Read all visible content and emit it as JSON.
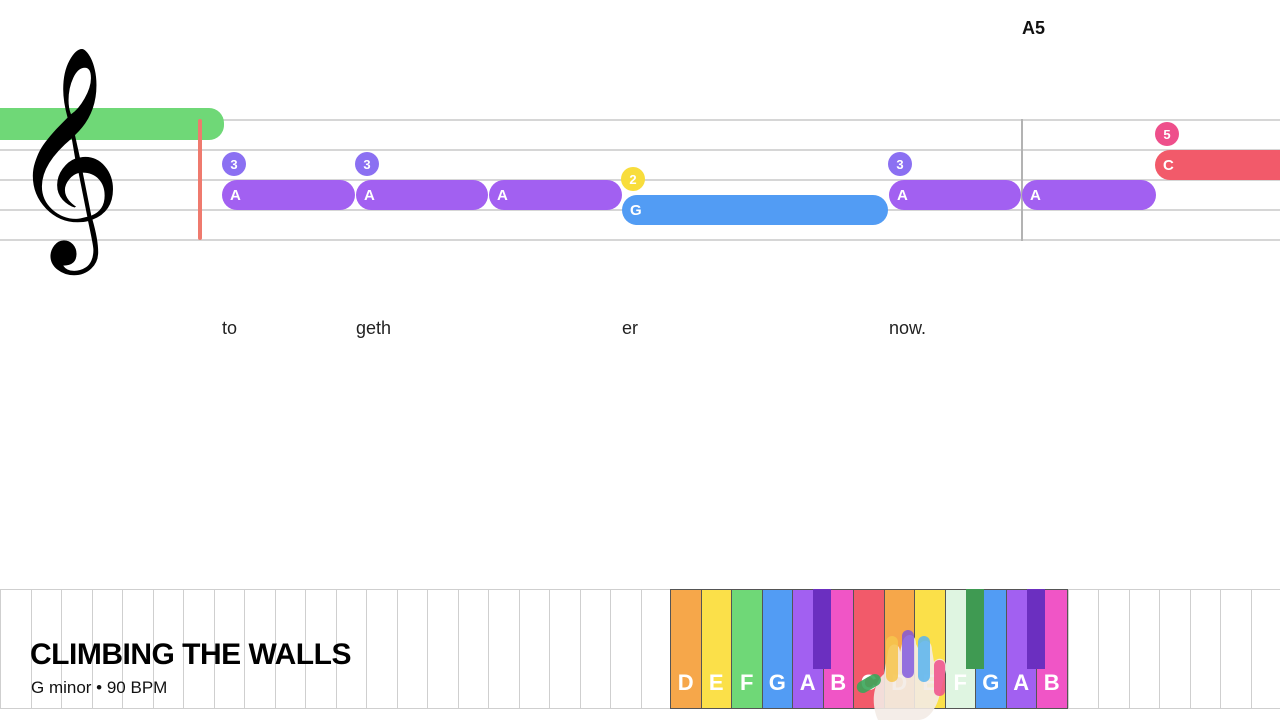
{
  "current_note": "A5",
  "song": {
    "title": "CLIMBING THE WALLS",
    "subtitle": "G minor • 90 BPM"
  },
  "colors": {
    "orange": "#f6a74a",
    "yellow": "#fbe049",
    "green": "#6fd877",
    "blue": "#529cf4",
    "purple": "#a260f1",
    "pink": "#f055c6",
    "red": "#f25a6a",
    "playhead": "#ef7a6e",
    "finger3": "#8b70f2",
    "finger2": "#f8dd3c",
    "finger5": "#ee4f8b"
  },
  "notes": [
    {
      "letter": "A",
      "finger": "3"
    },
    {
      "letter": "A",
      "finger": "3"
    },
    {
      "letter": "A",
      "finger": ""
    },
    {
      "letter": "G",
      "finger": "2"
    },
    {
      "letter": "A",
      "finger": "3"
    },
    {
      "letter": "A",
      "finger": ""
    },
    {
      "letter": "C",
      "finger": "5"
    }
  ],
  "lyrics": [
    "to",
    "geth",
    "er",
    "now."
  ],
  "keyboard": {
    "keys": [
      "D",
      "E",
      "F",
      "G",
      "A",
      "B",
      "C",
      "D",
      "E",
      "F",
      "G",
      "A",
      "B"
    ]
  }
}
